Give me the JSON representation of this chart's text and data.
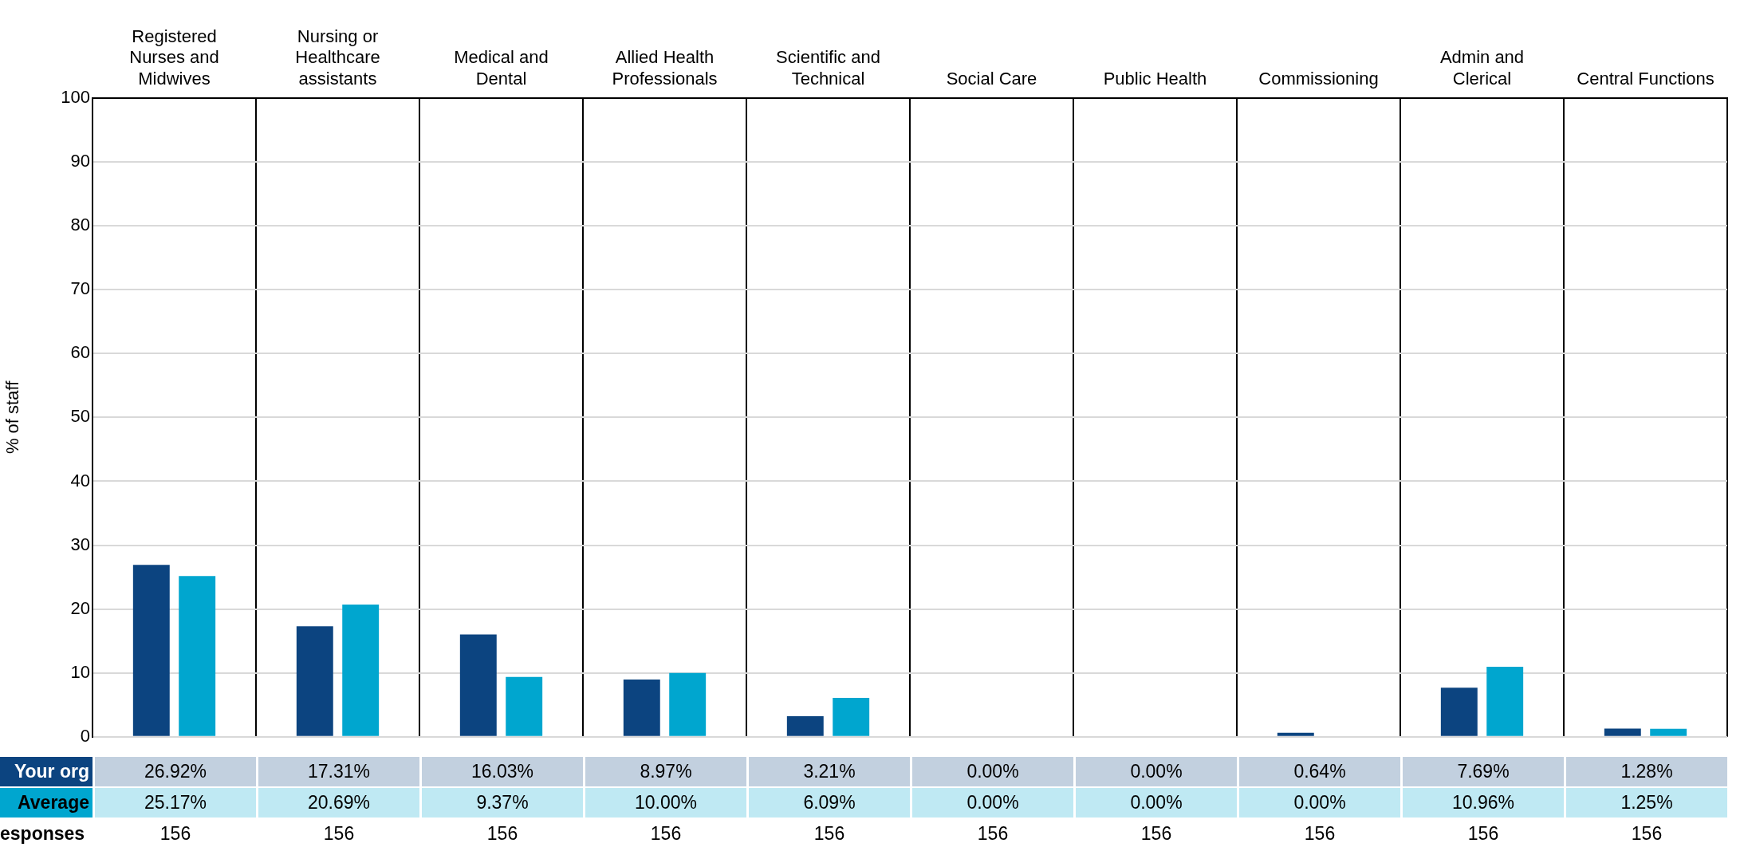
{
  "chart_data": {
    "type": "bar",
    "ylabel": "% of staff",
    "categories": [
      "Registered Nurses and Midwives",
      "Nursing or Healthcare assistants",
      "Medical and Dental",
      "Allied Health Professionals",
      "Scientific and Technical",
      "Social Care",
      "Public Health",
      "Commissioning",
      "Admin and Clerical",
      "Central Functions"
    ],
    "series": [
      {
        "name": "Your org",
        "color": "#0c4480",
        "values": [
          26.92,
          17.31,
          16.03,
          8.97,
          3.21,
          0.0,
          0.0,
          0.64,
          7.69,
          1.28
        ],
        "value_labels": [
          "26.92%",
          "17.31%",
          "16.03%",
          "8.97%",
          "3.21%",
          "0.00%",
          "0.00%",
          "0.64%",
          "7.69%",
          "1.28%"
        ]
      },
      {
        "name": "Average",
        "color": "#00a6cf",
        "values": [
          25.17,
          20.69,
          9.37,
          10.0,
          6.09,
          0.0,
          0.0,
          0.0,
          10.96,
          1.25
        ],
        "value_labels": [
          "25.17%",
          "20.69%",
          "9.37%",
          "10.00%",
          "6.09%",
          "0.00%",
          "0.00%",
          "0.00%",
          "10.96%",
          "1.25%"
        ]
      }
    ],
    "annotations": [
      "esponses",
      "156",
      "156",
      "156",
      "156",
      "156",
      "156",
      "156",
      "156",
      "156",
      "156"
    ],
    "ylim": [
      0,
      100
    ],
    "yticks": [
      0,
      10,
      20,
      30,
      40,
      50,
      60,
      70,
      80,
      90,
      100
    ],
    "grid": true,
    "legend": false
  }
}
